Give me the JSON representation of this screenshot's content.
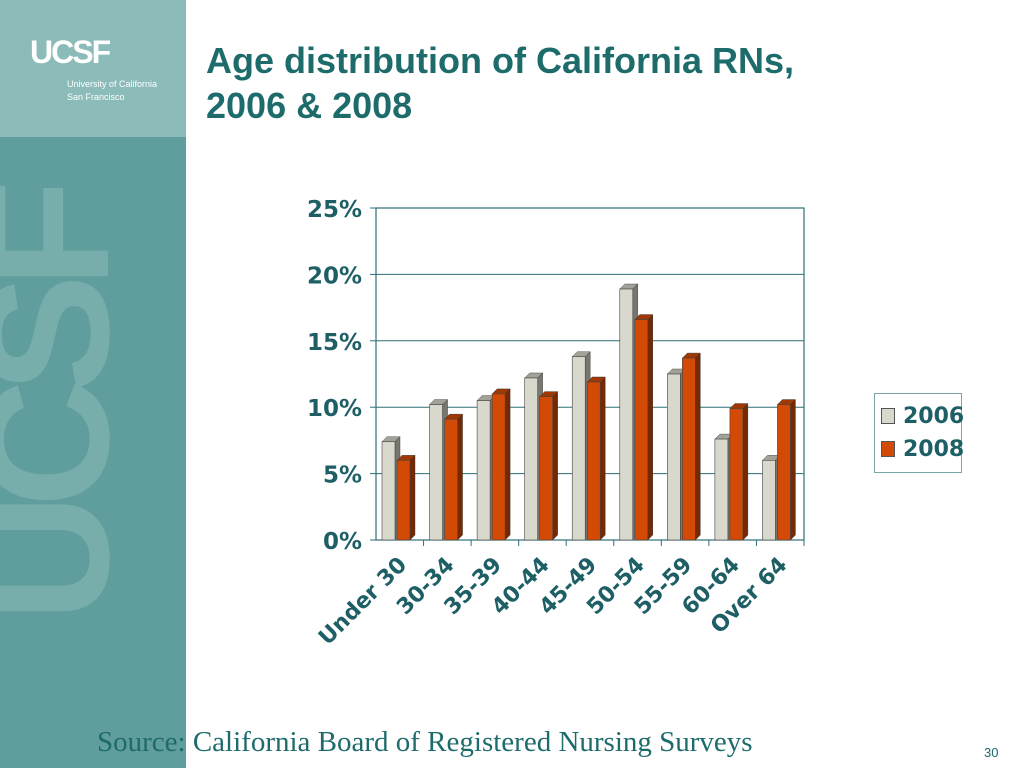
{
  "header": {
    "logo_text": "UCSF",
    "org_line1": "University of California",
    "org_line2": "San Francisco",
    "watermark": "UCSF"
  },
  "slide": {
    "title_line1": "Age distribution of California RNs,",
    "title_line2": "2006 & 2008",
    "source": "Source:  California Board of Registered Nursing Surveys",
    "page_number": "30"
  },
  "colors": {
    "sidebar": "#5f9e9c",
    "logo_panel": "#8bbcba",
    "title": "#1e6b6c",
    "series_2006": "#d9d8cc",
    "series_2008": "#d24a05"
  },
  "chart_data": {
    "type": "bar",
    "title": "",
    "xlabel": "",
    "ylabel": "",
    "categories": [
      "Under 30",
      "30-34",
      "35-39",
      "40-44",
      "45-49",
      "50-54",
      "55-59",
      "60-64",
      "Over 64"
    ],
    "series": [
      {
        "name": "2006",
        "values": [
          7.4,
          10.2,
          10.5,
          12.2,
          13.8,
          18.9,
          12.5,
          7.6,
          6.0
        ]
      },
      {
        "name": "2008",
        "values": [
          6.0,
          9.1,
          11.0,
          10.8,
          11.9,
          16.6,
          13.7,
          9.9,
          10.2
        ]
      }
    ],
    "ylim": [
      0,
      25
    ],
    "yticks": [
      0,
      5,
      10,
      15,
      20,
      25
    ],
    "ytick_labels": [
      "0%",
      "5%",
      "10%",
      "15%",
      "20%",
      "25%"
    ],
    "grid": true,
    "legend_position": "right"
  }
}
